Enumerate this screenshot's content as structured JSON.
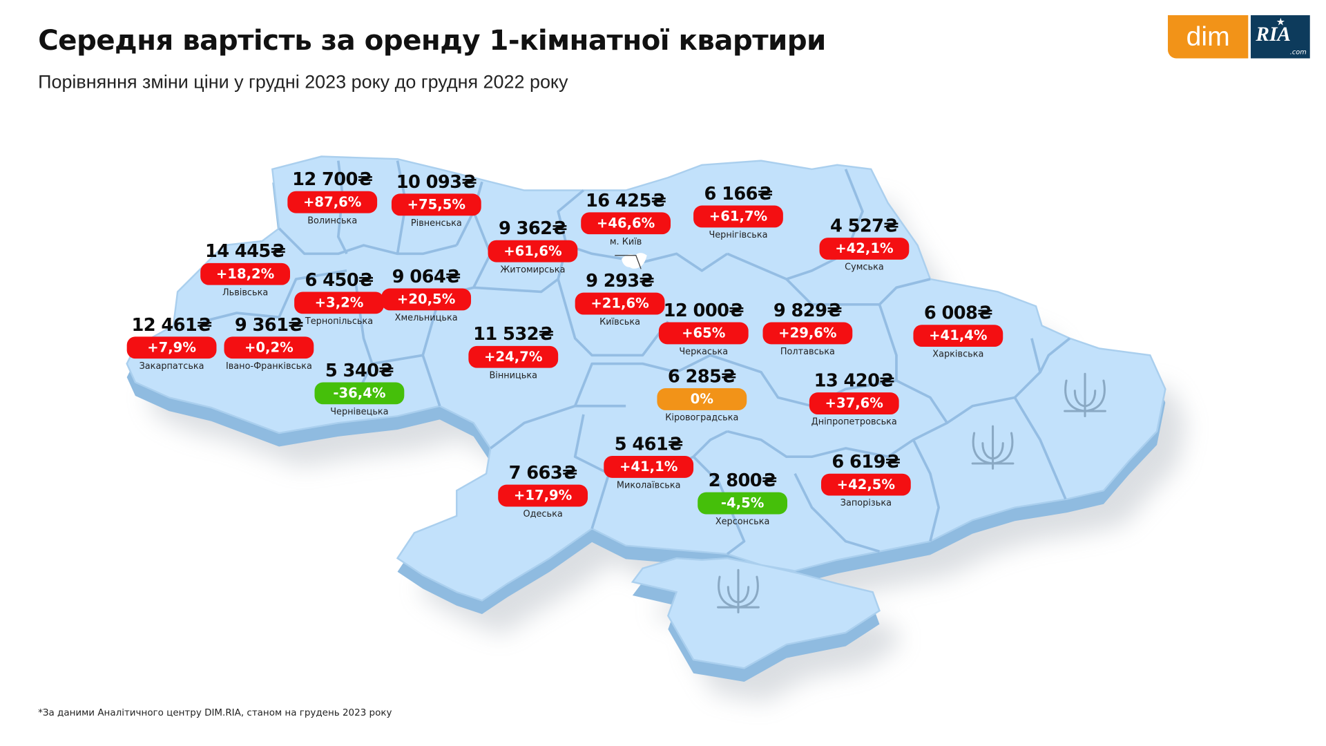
{
  "header": {
    "title": "Середня вартість за оренду 1-кімнатної квартири",
    "subtitle": "Порівняння зміни ціни у грудні 2023 року до грудня 2022 року"
  },
  "logo": {
    "left": "dim",
    "right": "RIA",
    "right_suffix": ".com"
  },
  "colors": {
    "increase": "#f40f12",
    "decrease": "#45bf0a",
    "no_change": "#f29318",
    "map_fill": "#c2e1fb",
    "map_side": "#8fbbe0"
  },
  "currency": "₴",
  "regions": [
    {
      "name": "Волинська",
      "price": "12 700₴",
      "change": "+87,6%",
      "trend": "up"
    },
    {
      "name": "Рівненська",
      "price": "10 093₴",
      "change": "+75,5%",
      "trend": "up"
    },
    {
      "name": "Львівська",
      "price": "14 445₴",
      "change": "+18,2%",
      "trend": "up"
    },
    {
      "name": "Тернопільська",
      "price": "6 450₴",
      "change": "+3,2%",
      "trend": "up"
    },
    {
      "name": "Хмельницька",
      "price": "9 064₴",
      "change": "+20,5%",
      "trend": "up"
    },
    {
      "name": "Закарпатська",
      "price": "12 461₴",
      "change": "+7,9%",
      "trend": "up"
    },
    {
      "name": "Івано-Франківська",
      "price": "9 361₴",
      "change": "+0,2%",
      "trend": "up"
    },
    {
      "name": "Чернівецька",
      "price": "5 340₴",
      "change": "-36,4%",
      "trend": "down"
    },
    {
      "name": "Житомирська",
      "price": "9 362₴",
      "change": "+61,6%",
      "trend": "up"
    },
    {
      "name": "м. Київ",
      "price": "16 425₴",
      "change": "+46,6%",
      "trend": "up"
    },
    {
      "name": "Київська",
      "price": "9 293₴",
      "change": "+21,6%",
      "trend": "up"
    },
    {
      "name": "Вінницька",
      "price": "11 532₴",
      "change": "+24,7%",
      "trend": "up"
    },
    {
      "name": "Чернігівська",
      "price": "6 166₴",
      "change": "+61,7%",
      "trend": "up"
    },
    {
      "name": "Сумська",
      "price": "4 527₴",
      "change": "+42,1%",
      "trend": "up"
    },
    {
      "name": "Черкаська",
      "price": "12 000₴",
      "change": "+65%",
      "trend": "up"
    },
    {
      "name": "Полтавська",
      "price": "9 829₴",
      "change": "+29,6%",
      "trend": "up"
    },
    {
      "name": "Харківська",
      "price": "6 008₴",
      "change": "+41,4%",
      "trend": "up"
    },
    {
      "name": "Кіровоградська",
      "price": "6 285₴",
      "change": "0%",
      "trend": "none"
    },
    {
      "name": "Дніпропетровська",
      "price": "13 420₴",
      "change": "+37,6%",
      "trend": "up"
    },
    {
      "name": "Миколаївська",
      "price": "5 461₴",
      "change": "+41,1%",
      "trend": "up"
    },
    {
      "name": "Запорізька",
      "price": "6 619₴",
      "change": "+42,5%",
      "trend": "up"
    },
    {
      "name": "Херсонська",
      "price": "2 800₴",
      "change": "-4,5%",
      "trend": "down"
    },
    {
      "name": "Одеська",
      "price": "7 663₴",
      "change": "+17,9%",
      "trend": "up"
    }
  ],
  "occupied_region_icon": "trident-icon",
  "footnote": "*За даними Аналітичного центру DIM.RIA, станом на грудень 2023 року"
}
